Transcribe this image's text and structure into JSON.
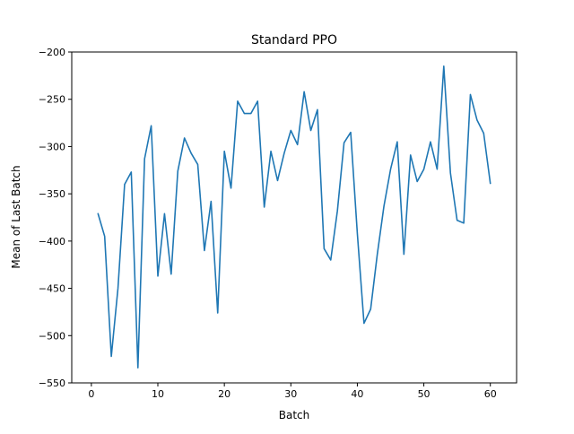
{
  "chart_data": {
    "type": "line",
    "title": "Standard PPO",
    "xlabel": "Batch",
    "ylabel": "Mean of Last Batch",
    "xlim": [
      -2.95,
      63.95
    ],
    "ylim": [
      -550,
      -200
    ],
    "xticks": [
      0,
      10,
      20,
      30,
      40,
      50,
      60
    ],
    "yticks": [
      -550,
      -500,
      -450,
      -400,
      -350,
      -300,
      -250,
      -200
    ],
    "xtick_labels": [
      "0",
      "10",
      "20",
      "30",
      "40",
      "50",
      "60"
    ],
    "ytick_labels": [
      "−550",
      "−500",
      "−450",
      "−400",
      "−350",
      "−300",
      "−250",
      "−200"
    ],
    "grid": false,
    "series": [
      {
        "color": "#1f77b4",
        "x": [
          1,
          2,
          3,
          4,
          5,
          6,
          7,
          8,
          9,
          10,
          11,
          12,
          13,
          14,
          15,
          16,
          17,
          18,
          19,
          20,
          21,
          22,
          23,
          24,
          25,
          26,
          27,
          28,
          29,
          30,
          31,
          32,
          33,
          34,
          35,
          36,
          37,
          38,
          39,
          40,
          41,
          42,
          43,
          44,
          45,
          46,
          47,
          48,
          49,
          50,
          51,
          52,
          53,
          54,
          55,
          56,
          57,
          58,
          59,
          60
        ],
        "y": [
          -371,
          -395,
          -522,
          -450,
          -340,
          -327,
          -534,
          -313,
          -278,
          -437,
          -371,
          -435,
          -326,
          -291,
          -307,
          -319,
          -410,
          -358,
          -476,
          -305,
          -344,
          -252,
          -265,
          -265,
          -252,
          -364,
          -305,
          -336,
          -307,
          -283,
          -298,
          -242,
          -283,
          -261,
          -408,
          -420,
          -368,
          -296,
          -285,
          -392,
          -487,
          -472,
          -414,
          -363,
          -324,
          -295,
          -414,
          -309,
          -337,
          -324,
          -295,
          -324,
          -215,
          -328,
          -378,
          -381,
          -245,
          -272,
          -286,
          -339
        ]
      }
    ]
  }
}
